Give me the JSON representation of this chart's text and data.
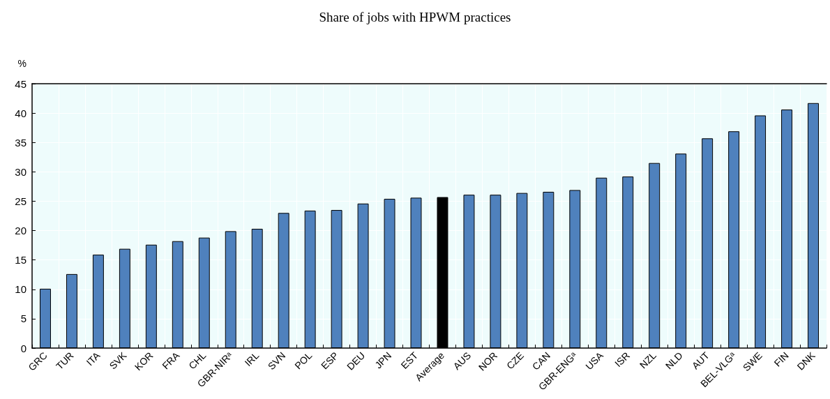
{
  "chart_data": {
    "type": "bar",
    "title": "Share of jobs with HPWM practices",
    "ylabel": "%",
    "categories": [
      "GRC",
      "TUR",
      "ITA",
      "SVK",
      "KOR",
      "FRA",
      "CHL",
      "GBR-NIRᵃ",
      "IRL",
      "SVN",
      "POL",
      "ESP",
      "DEU",
      "JPN",
      "EST",
      "Average",
      "AUS",
      "NOR",
      "CZE",
      "CAN",
      "GBR-ENGᵃ",
      "USA",
      "ISR",
      "NZL",
      "NLD",
      "AUT",
      "BEL-VLGᵃ",
      "SWE",
      "FIN",
      "DNK"
    ],
    "values": [
      10.1,
      12.6,
      15.9,
      16.9,
      17.6,
      18.2,
      18.8,
      19.9,
      20.3,
      23.0,
      23.4,
      23.5,
      24.6,
      25.4,
      25.6,
      25.7,
      26.1,
      26.1,
      26.4,
      26.6,
      26.9,
      29.0,
      29.2,
      31.5,
      33.1,
      35.7,
      36.9,
      39.6,
      40.6,
      41.7
    ],
    "colors": [
      "#4f81bd",
      "#4f81bd",
      "#4f81bd",
      "#4f81bd",
      "#4f81bd",
      "#4f81bd",
      "#4f81bd",
      "#4f81bd",
      "#4f81bd",
      "#4f81bd",
      "#4f81bd",
      "#4f81bd",
      "#4f81bd",
      "#4f81bd",
      "#4f81bd",
      "#000000",
      "#4f81bd",
      "#4f81bd",
      "#4f81bd",
      "#4f81bd",
      "#4f81bd",
      "#4f81bd",
      "#4f81bd",
      "#4f81bd",
      "#4f81bd",
      "#4f81bd",
      "#4f81bd",
      "#4f81bd",
      "#4f81bd",
      "#4f81bd"
    ],
    "ylim": [
      0,
      45
    ],
    "yticks": [
      0,
      5,
      10,
      15,
      20,
      25,
      30,
      35,
      40,
      45
    ],
    "grid": true
  }
}
